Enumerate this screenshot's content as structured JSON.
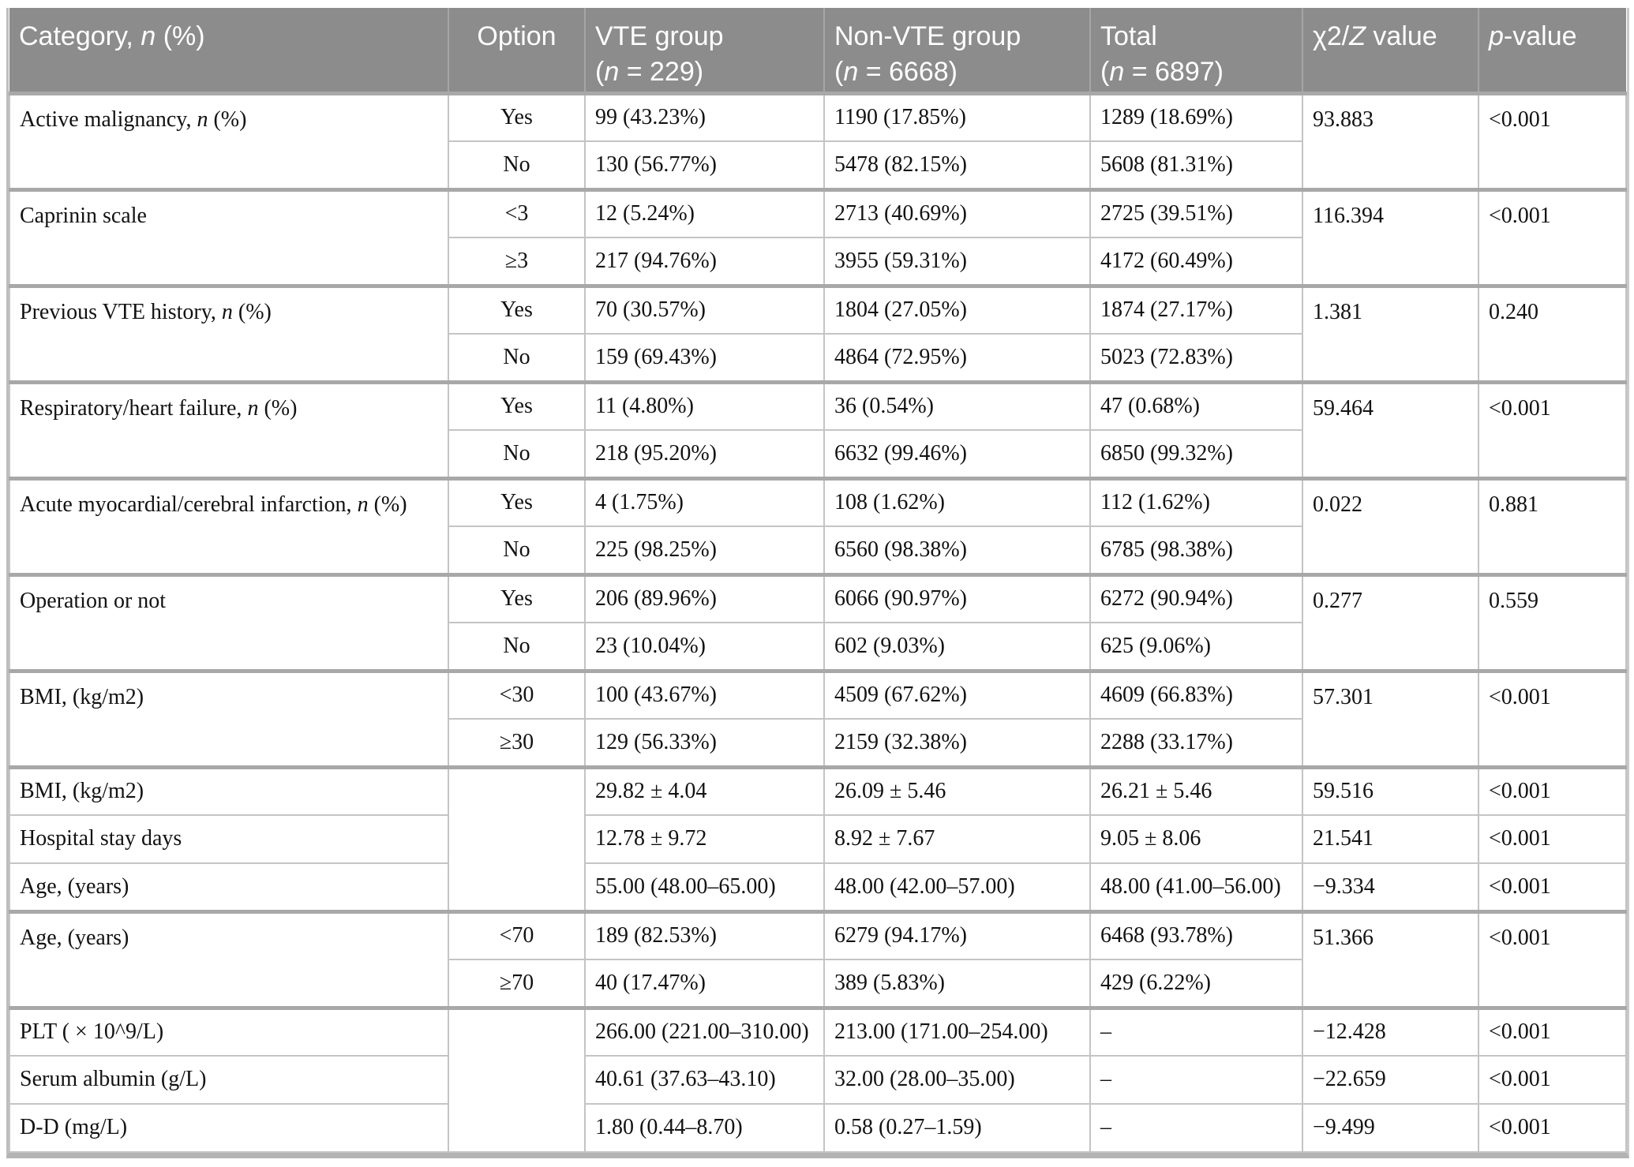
{
  "table": {
    "columns": [
      {
        "id": "category",
        "label": "Category, *n* (%)"
      },
      {
        "id": "option",
        "label": "Option"
      },
      {
        "id": "vte",
        "label": "VTE group\n(*n* = 229)"
      },
      {
        "id": "nonvte",
        "label": "Non-VTE group\n(*n* = 6668)"
      },
      {
        "id": "total",
        "label": "Total\n(*n* = 6897)"
      },
      {
        "id": "chi",
        "label": "χ2/*Z* value"
      },
      {
        "id": "p",
        "label": "*p*-value"
      }
    ],
    "groups": [
      {
        "category": "Active malignancy, *n* (%)",
        "chi": "93.883",
        "p": "<0.001",
        "rows": [
          {
            "option": "Yes",
            "vte": "99 (43.23%)",
            "nonvte": "1190 (17.85%)",
            "total": "1289 (18.69%)"
          },
          {
            "option": "No",
            "vte": "130 (56.77%)",
            "nonvte": "5478 (82.15%)",
            "total": "5608 (81.31%)"
          }
        ]
      },
      {
        "category": "Caprinin scale",
        "chi": "116.394",
        "p": "<0.001",
        "rows": [
          {
            "option": "<3",
            "vte": "12 (5.24%)",
            "nonvte": "2713 (40.69%)",
            "total": "2725 (39.51%)"
          },
          {
            "option": "≥3",
            "vte": "217 (94.76%)",
            "nonvte": "3955 (59.31%)",
            "total": "4172 (60.49%)"
          }
        ]
      },
      {
        "category": "Previous VTE history, *n* (%)",
        "chi": "1.381",
        "p": "0.240",
        "rows": [
          {
            "option": "Yes",
            "vte": "70 (30.57%)",
            "nonvte": "1804 (27.05%)",
            "total": "1874 (27.17%)"
          },
          {
            "option": "No",
            "vte": "159 (69.43%)",
            "nonvte": "4864 (72.95%)",
            "total": "5023 (72.83%)"
          }
        ]
      },
      {
        "category": "Respiratory/heart failure, *n* (%)",
        "chi": "59.464",
        "p": "<0.001",
        "rows": [
          {
            "option": "Yes",
            "vte": "11 (4.80%)",
            "nonvte": "36 (0.54%)",
            "total": "47 (0.68%)"
          },
          {
            "option": "No",
            "vte": "218 (95.20%)",
            "nonvte": "6632 (99.46%)",
            "total": "6850 (99.32%)"
          }
        ]
      },
      {
        "category": "Acute myocardial/cerebral infarction, *n* (%)",
        "chi": "0.022",
        "p": "0.881",
        "rows": [
          {
            "option": "Yes",
            "vte": "4 (1.75%)",
            "nonvte": "108 (1.62%)",
            "total": "112 (1.62%)"
          },
          {
            "option": "No",
            "vte": "225 (98.25%)",
            "nonvte": "6560 (98.38%)",
            "total": "6785 (98.38%)"
          }
        ]
      },
      {
        "category": "Operation or not",
        "chi": "0.277",
        "p": "0.559",
        "rows": [
          {
            "option": "Yes",
            "vte": "206 (89.96%)",
            "nonvte": "6066 (90.97%)",
            "total": "6272 (90.94%)"
          },
          {
            "option": "No",
            "vte": "23 (10.04%)",
            "nonvte": "602 (9.03%)",
            "total": "625 (9.06%)"
          }
        ]
      },
      {
        "category": "BMI, (kg/m2)",
        "chi": "57.301",
        "p": "<0.001",
        "rows": [
          {
            "option": "<30",
            "vte": "100 (43.67%)",
            "nonvte": "4509 (67.62%)",
            "total": "4609 (66.83%)"
          },
          {
            "option": "≥30",
            "vte": "129 (56.33%)",
            "nonvte": "2159 (32.38%)",
            "total": "2288 (33.17%)"
          }
        ]
      },
      {
        "type": "block",
        "rows": [
          {
            "category": "BMI, (kg/m2)",
            "vte": "29.82 ± 4.04",
            "nonvte": "26.09 ± 5.46",
            "total": "26.21 ± 5.46",
            "chi": "59.516",
            "p": "<0.001"
          },
          {
            "category": "Hospital stay days",
            "vte": "12.78 ± 9.72",
            "nonvte": "8.92 ± 7.67",
            "total": "9.05 ± 8.06",
            "chi": "21.541",
            "p": "<0.001"
          },
          {
            "category": "Age, (years)",
            "vte": "55.00 (48.00–65.00)",
            "nonvte": "48.00 (42.00–57.00)",
            "total": "48.00 (41.00–56.00)",
            "chi": "−9.334",
            "p": "<0.001"
          }
        ]
      },
      {
        "category": "Age, (years)",
        "chi": "51.366",
        "p": "<0.001",
        "rows": [
          {
            "option": "<70",
            "vte": "189 (82.53%)",
            "nonvte": "6279 (94.17%)",
            "total": "6468 (93.78%)"
          },
          {
            "option": "≥70",
            "vte": "40 (17.47%)",
            "nonvte": "389 (5.83%)",
            "total": "429 (6.22%)"
          }
        ]
      },
      {
        "type": "block",
        "rows": [
          {
            "category": "PLT ( × 10^9/L)",
            "vte": "266.00 (221.00–310.00)",
            "nonvte": "213.00 (171.00–254.00)",
            "total": "–",
            "chi": "−12.428",
            "p": "<0.001"
          },
          {
            "category": "Serum albumin (g/L)",
            "vte": "40.61 (37.63–43.10)",
            "nonvte": "32.00 (28.00–35.00)",
            "total": "–",
            "chi": "−22.659",
            "p": "<0.001"
          },
          {
            "category": "D-D (mg/L)",
            "vte": "1.80 (0.44–8.70)",
            "nonvte": "0.58 (0.27–1.59)",
            "total": "–",
            "chi": "−9.499",
            "p": "<0.001"
          }
        ]
      }
    ],
    "colors": {
      "header_bg": "#8c8c8c",
      "header_text": "#ffffff",
      "body_text": "#121212",
      "light_border": "#c4c4c4",
      "group_border": "#a8a8a8",
      "outer_border": "#b3b3b3"
    }
  }
}
